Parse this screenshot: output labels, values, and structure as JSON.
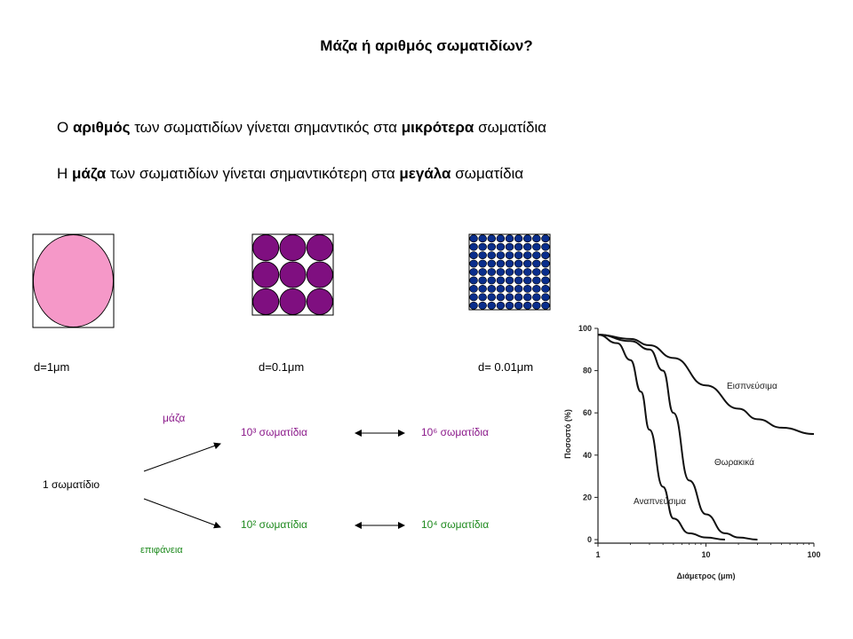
{
  "title": "Μάζα ή αριθμός σωματιδίων?",
  "line1": {
    "a": "Ο ",
    "b": "αριθμός",
    "c": " των σωματιδίων γίνεται σημαντικός στα ",
    "d": "μικρότερα",
    "e": " σωματίδια"
  },
  "line2": {
    "a": "Η ",
    "b": "μάζα",
    "c": " των σωματιδίων γίνεται σημαντικότερη στα ",
    "d": "μεγάλα",
    "e": " σωματίδια"
  },
  "particles": [
    {
      "label": "d=1μm",
      "grid": 1,
      "color": "#f598c8"
    },
    {
      "label": "d=0.1μm",
      "grid": 3,
      "color": "#7f0f80"
    },
    {
      "label": "d= 0.01μm",
      "grid": 9,
      "color": "#0a2e8c"
    }
  ],
  "flow": {
    "source": "1 σωματίδιο",
    "mass_label": "μάζα",
    "surface_label": "επιφάνεια",
    "mass_mid": "10³ σωματίδια",
    "mass_end": "10⁶ σωματίδια",
    "surface_mid": "10² σωματίδια",
    "surface_end": "10⁴ σωματίδια",
    "mass_color": "#8b1a8b",
    "surface_color": "#1e8a1e"
  },
  "chart_data": {
    "type": "line",
    "xlabel": "Διάμετρος (μm)",
    "ylabel": "Ποσοστό (%)",
    "xscale": "log",
    "xlim": [
      1,
      100
    ],
    "ylim": [
      0,
      100
    ],
    "xticks": [
      "1",
      "10",
      "100"
    ],
    "yticks": [
      "0",
      "20",
      "40",
      "60",
      "80",
      "100"
    ],
    "series": [
      {
        "name": "Εισπνεύσιμα",
        "x": [
          1,
          2,
          3,
          5,
          10,
          20,
          30,
          50,
          100
        ],
        "y": [
          97,
          95,
          92,
          86,
          73,
          62,
          57,
          53,
          50
        ]
      },
      {
        "name": "Θωρακικά",
        "x": [
          1,
          2,
          3,
          4,
          5,
          7,
          10,
          15,
          20,
          30
        ],
        "y": [
          97,
          94,
          90,
          80,
          60,
          28,
          12,
          3,
          1,
          0
        ]
      },
      {
        "name": "Αναπνεύσιμα",
        "x": [
          1,
          1.5,
          2,
          2.5,
          3,
          4,
          5,
          7,
          10,
          15
        ],
        "y": [
          97,
          93,
          85,
          70,
          52,
          25,
          10,
          3,
          1,
          0
        ]
      }
    ]
  }
}
